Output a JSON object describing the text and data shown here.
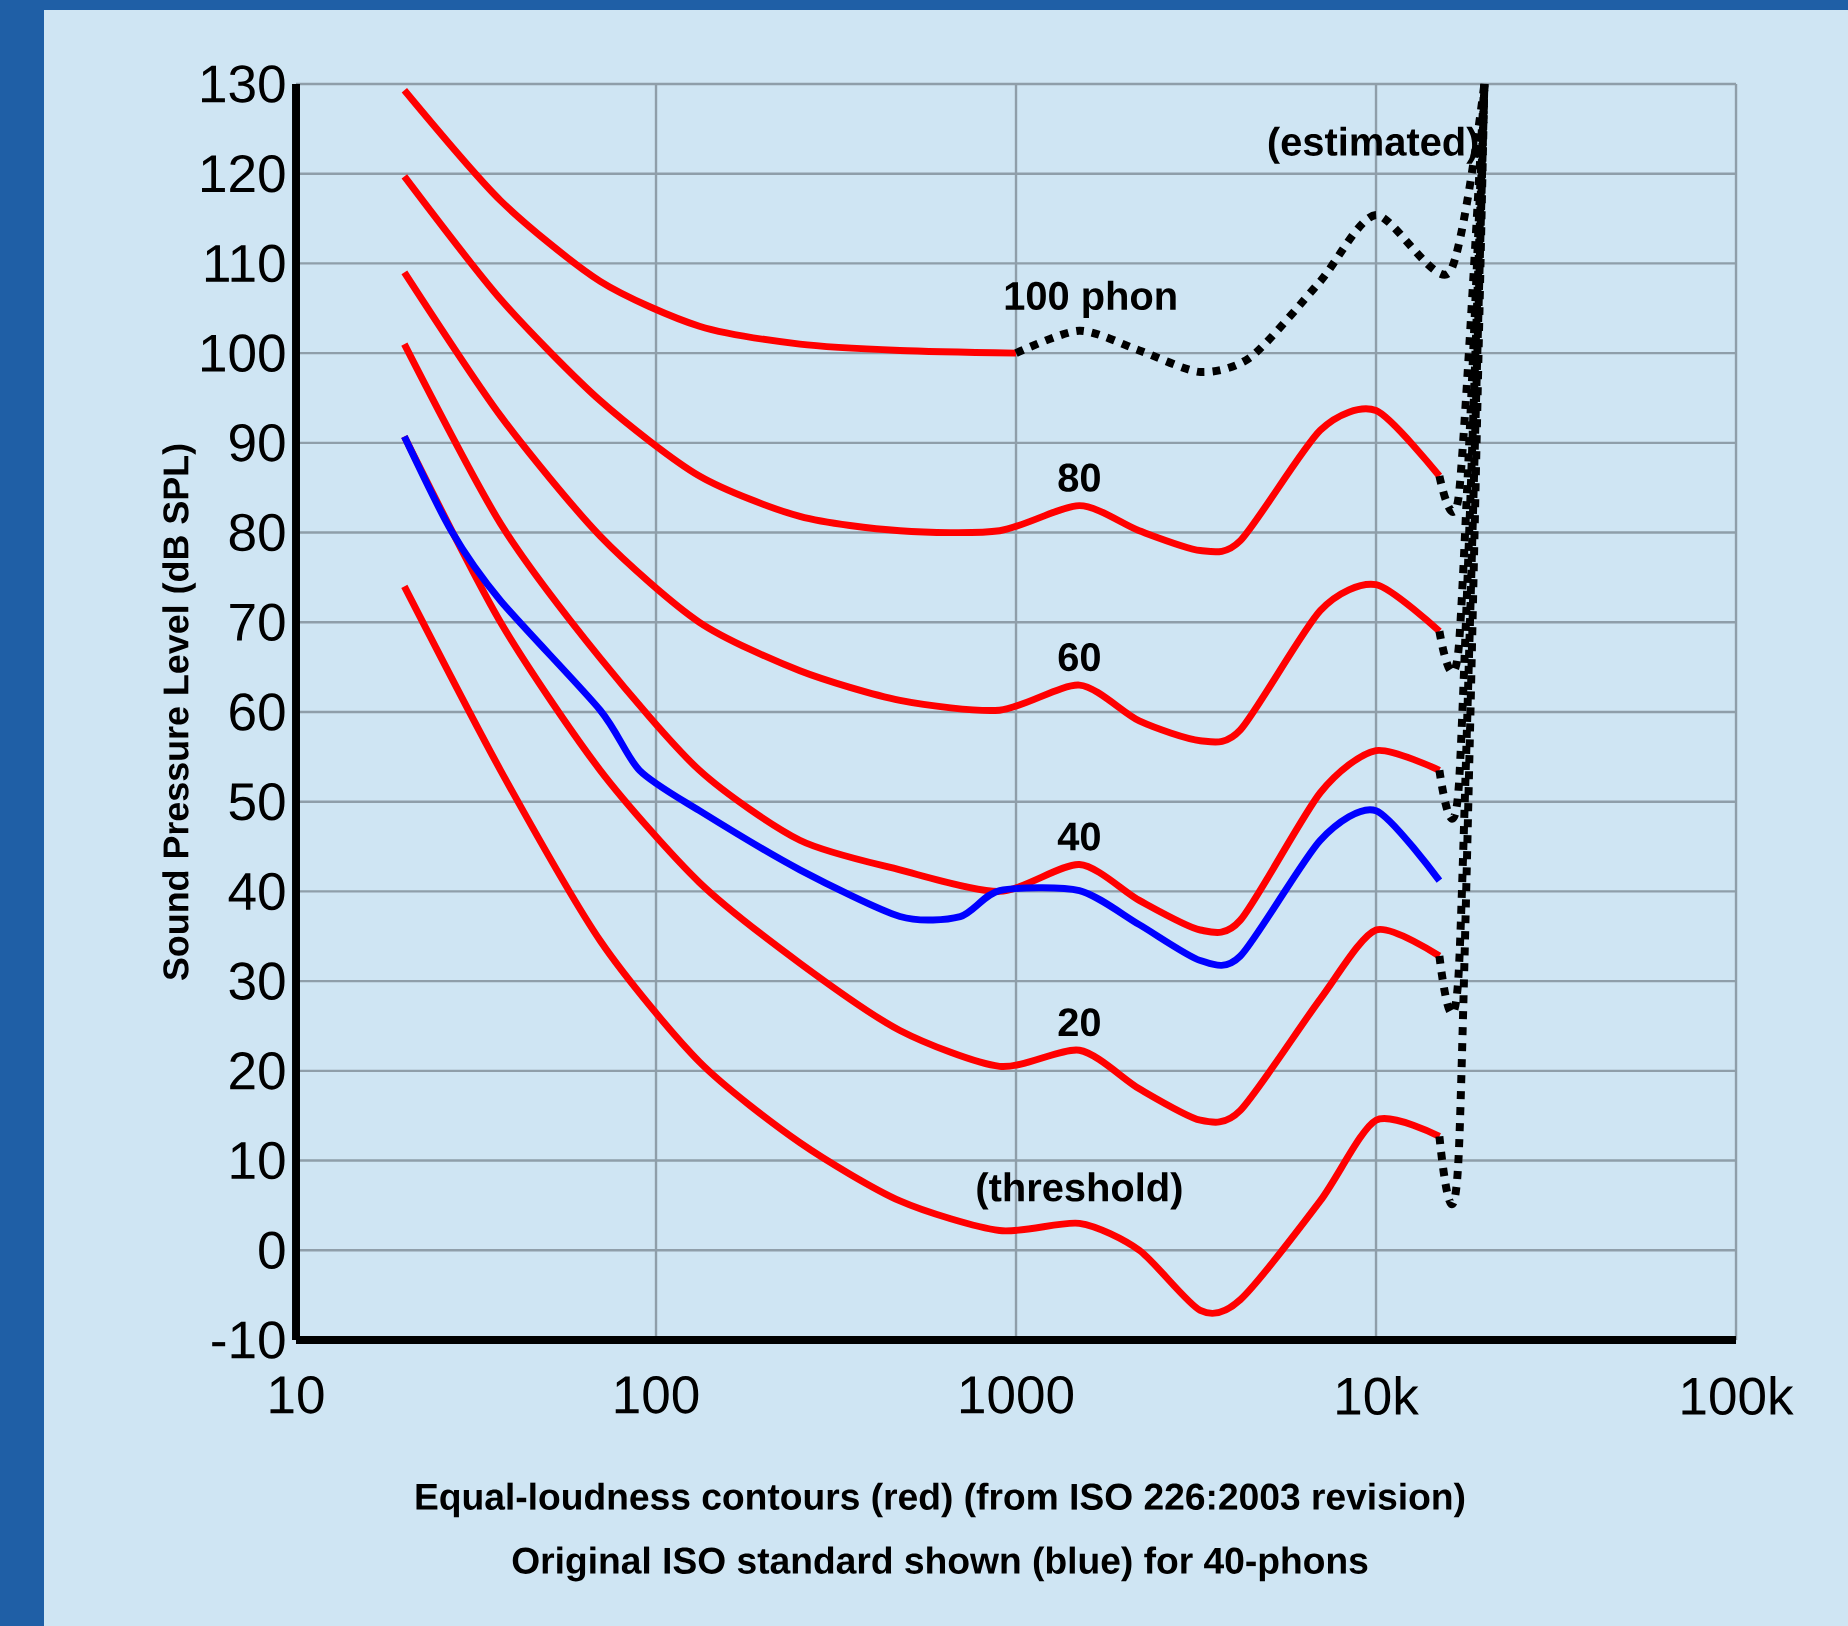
{
  "chart_data": {
    "type": "line",
    "xlabel": "Equal-loudness contours (red) (from ISO 226:2003 revision)",
    "ylabel": "Sound Pressure Level (dB SPL)",
    "annotations": [
      "Original ISO standard shown (blue) for 40-phons"
    ],
    "log": "x",
    "grid": true,
    "xlim": [
      10,
      100000
    ],
    "xticks": [
      10,
      100,
      1000,
      {
        "value": 10000,
        "label": "10k"
      },
      {
        "value": 100000,
        "label": "100k"
      }
    ],
    "ylim": [
      -10,
      130
    ],
    "yticks": [
      -10,
      0,
      10,
      20,
      30,
      40,
      50,
      60,
      70,
      80,
      90,
      100,
      110,
      120,
      130
    ],
    "series": [
      {
        "name": "(threshold)",
        "color": "#ff0000",
        "line_style": "solid",
        "x": [
          20,
          37,
          70,
          132,
          251,
          476,
          900,
          1500,
          2200,
          3250,
          4200,
          7000,
          10000,
          15000
        ],
        "values": [
          74,
          53.5,
          34.5,
          21,
          12,
          5.5,
          2.2,
          3,
          0,
          -6.7,
          -5.5,
          5.5,
          14.5,
          12.7
        ]
      },
      {
        "name": "20",
        "color": "#ff0000",
        "line_style": "solid",
        "x": [
          20,
          37,
          70,
          132,
          251,
          476,
          900,
          1500,
          2200,
          3250,
          4200,
          7000,
          10000,
          15000
        ],
        "values": [
          90.7,
          70,
          53.5,
          41,
          32,
          24.5,
          20.5,
          22.3,
          18,
          14.5,
          15.6,
          28,
          35.7,
          32.8
        ]
      },
      {
        "name": "40",
        "color": "#ff0000",
        "line_style": "solid",
        "x": [
          20,
          37,
          70,
          132,
          251,
          476,
          900,
          1500,
          2200,
          3250,
          4200,
          7000,
          10000,
          15000
        ],
        "values": [
          101,
          81,
          66,
          53.5,
          45.7,
          42.4,
          40,
          43,
          39,
          35.7,
          36.8,
          51,
          55.7,
          53.5
        ]
      },
      {
        "name": "60",
        "color": "#ff0000",
        "line_style": "solid",
        "x": [
          20,
          37,
          70,
          132,
          251,
          476,
          900,
          1500,
          2200,
          3250,
          4200,
          7000,
          10000,
          15000
        ],
        "values": [
          109,
          93,
          79.6,
          70,
          64.6,
          61.3,
          60.2,
          63,
          59,
          56.8,
          58,
          71.3,
          74.2,
          69
        ]
      },
      {
        "name": "80",
        "color": "#ff0000",
        "line_style": "solid",
        "x": [
          20,
          37,
          70,
          132,
          251,
          476,
          900,
          1500,
          2200,
          3250,
          4200,
          7000,
          10000,
          15000
        ],
        "values": [
          119.7,
          106,
          94.7,
          86.3,
          81.8,
          80.2,
          80.2,
          83,
          80.2,
          78,
          79.1,
          91.4,
          93.6,
          86.3
        ]
      },
      {
        "name": "100 phon",
        "color": "#ff0000",
        "line_style": "solid",
        "x": [
          20,
          37,
          70,
          132,
          251,
          476,
          1000
        ],
        "values": [
          129.3,
          117,
          108,
          103,
          101,
          100.3,
          100
        ]
      },
      {
        "name": "(estimated)",
        "color": "#000000",
        "line_style": "dotted",
        "x": [
          1000,
          1500,
          2200,
          3250,
          4500,
          7000,
          10000,
          16000,
          20000
        ],
        "values": [
          100,
          102.5,
          100.3,
          97.9,
          99.6,
          108,
          115.4,
          109,
          130
        ]
      },
      {
        "color": "#000000",
        "line_style": "dotted",
        "x": [
          15000,
          17000,
          20000
        ],
        "values": [
          86.3,
          84.3,
          130
        ]
      },
      {
        "color": "#000000",
        "line_style": "dotted",
        "x": [
          15000,
          17000,
          20000
        ],
        "values": [
          69,
          67.5,
          130
        ]
      },
      {
        "color": "#000000",
        "line_style": "dotted",
        "x": [
          15000,
          17000,
          20000
        ],
        "values": [
          53.5,
          52,
          130
        ]
      },
      {
        "color": "#000000",
        "line_style": "dotted",
        "x": [
          15000,
          17000,
          20000
        ],
        "values": [
          32.8,
          31.5,
          130
        ]
      },
      {
        "color": "#000000",
        "line_style": "dotted",
        "x": [
          15000,
          17000,
          20000
        ],
        "values": [
          12.7,
          11.3,
          130
        ]
      },
      {
        "color": "#0000ff",
        "line_style": "solid",
        "x": [
          20,
          27,
          37,
          70,
          90,
          132,
          251,
          476,
          700,
          900,
          1500,
          2200,
          3250,
          4200,
          7000,
          10000,
          15000
        ],
        "values": [
          90.7,
          80.2,
          72.4,
          60.2,
          53.5,
          49,
          42.4,
          37.2,
          37.2,
          40.1,
          40.1,
          36.3,
          32.3,
          32.8,
          45.7,
          49,
          41.2
        ]
      }
    ]
  }
}
